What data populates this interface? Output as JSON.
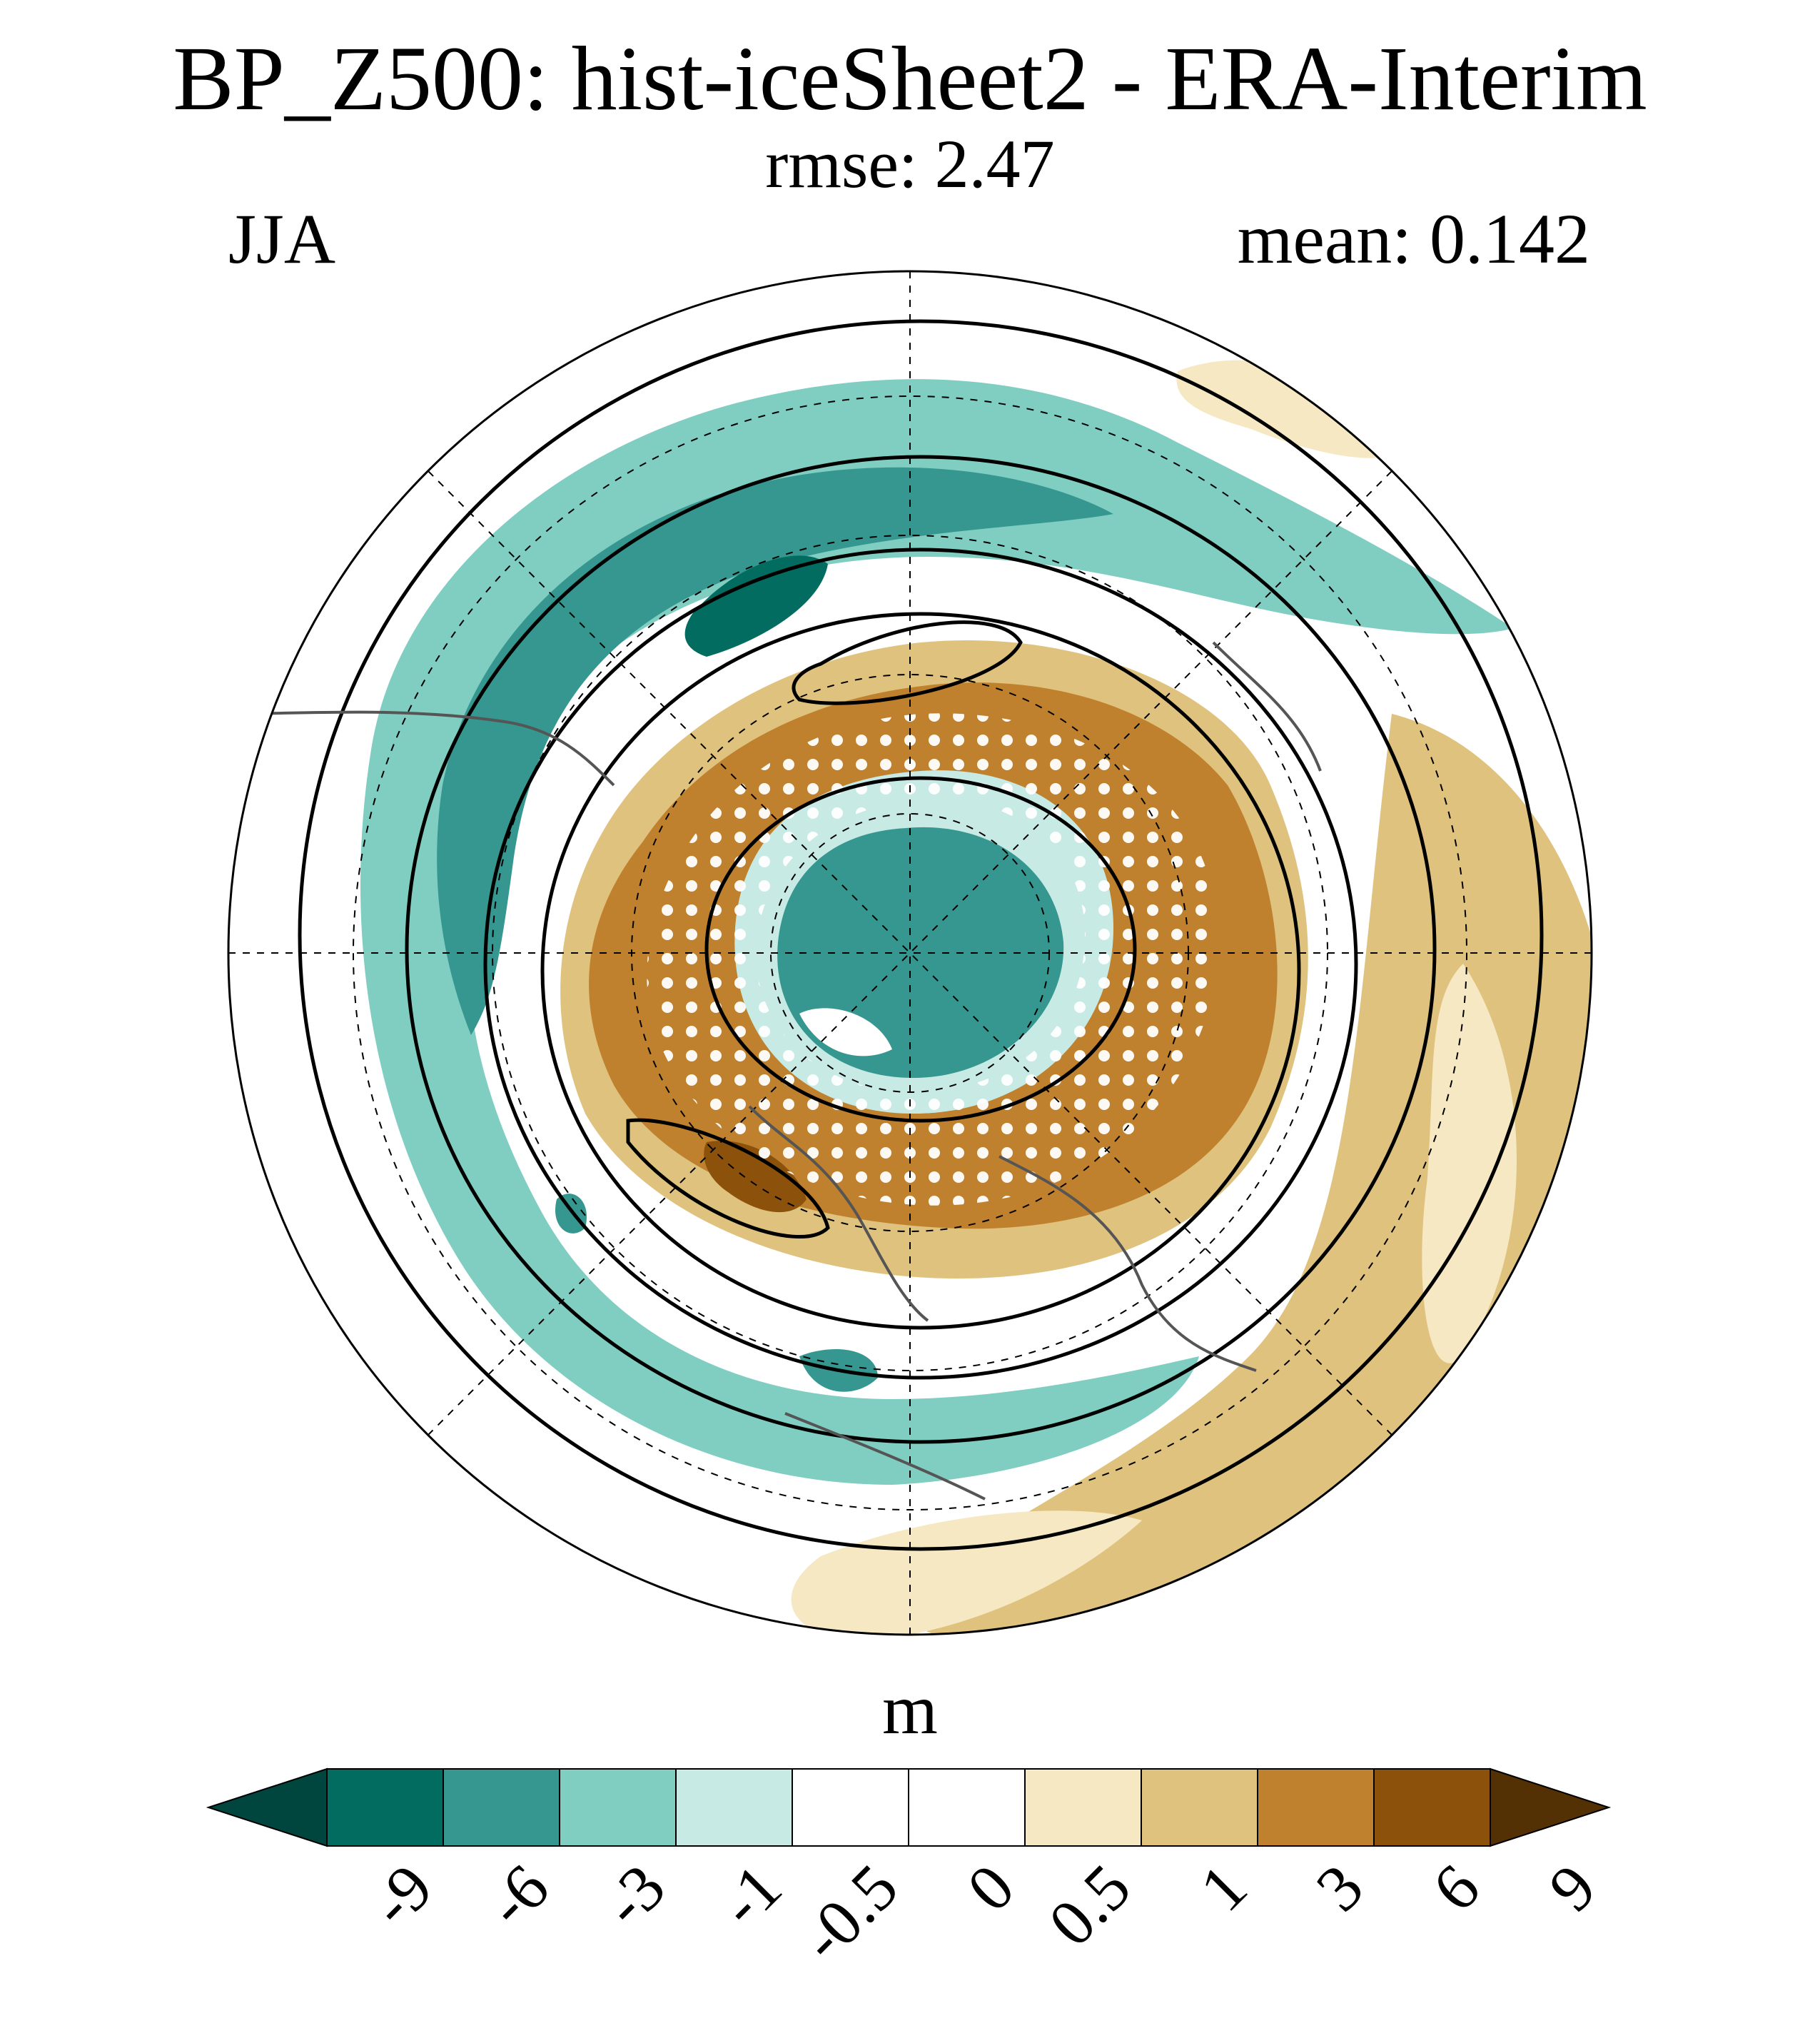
{
  "header": {
    "title": "BP_Z500: hist-iceSheet2 - ERA-Interim",
    "subtitle": "rmse: 2.47",
    "season": "JJA",
    "mean": "mean: 0.142"
  },
  "map": {
    "projection": "north-polar-stereographic",
    "features": [
      "filled anomaly contours",
      "climatology contour lines",
      "stippling",
      "coastlines",
      "lat/lon grid (dashed)"
    ]
  },
  "colorbar": {
    "unit": "m",
    "tick_labels": [
      "-9",
      "-6",
      "-3",
      "-1",
      "-0.5",
      "0",
      "0.5",
      "1",
      "3",
      "6",
      "9"
    ],
    "colors": [
      "#00463e",
      "#016c5f",
      "#35978f",
      "#80cdc1",
      "#c7eae5",
      "#ffffff",
      "#ffffff",
      "#f6e8c3",
      "#dfc27d",
      "#bf812d",
      "#8c510a",
      "#543005"
    ]
  }
}
